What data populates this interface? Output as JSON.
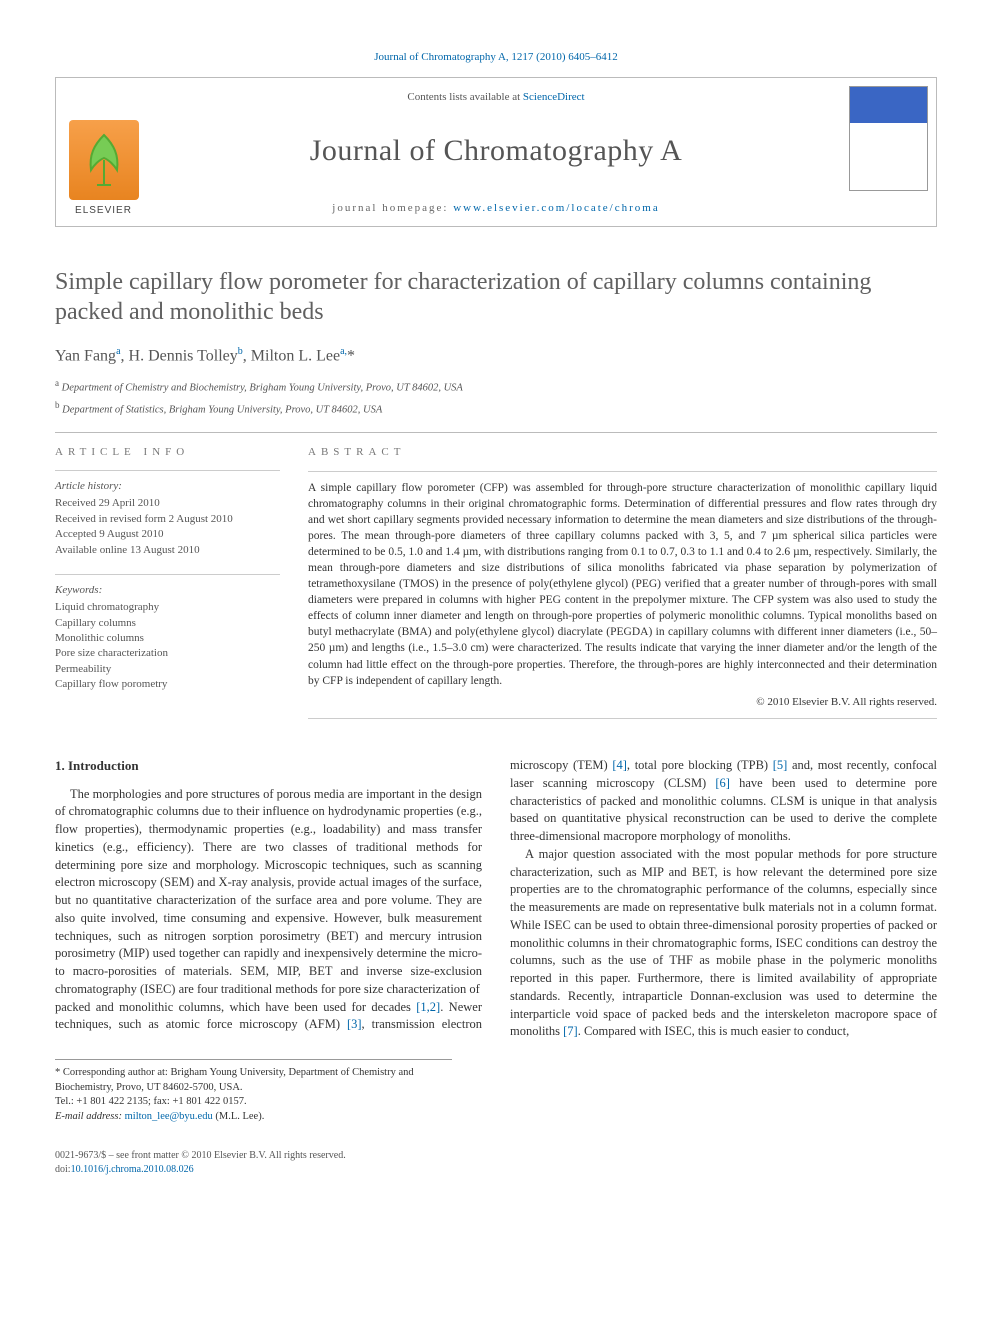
{
  "header": {
    "citation": "Journal of Chromatography A, 1217 (2010) 6405–6412",
    "contents_prefix": "Contents lists available at ",
    "contents_link": "ScienceDirect",
    "journal_name": "Journal of Chromatography A",
    "homepage_prefix": "journal homepage: ",
    "homepage_url": "www.elsevier.com/locate/chroma",
    "publisher": "ELSEVIER"
  },
  "article": {
    "title": "Simple capillary flow porometer for characterization of capillary columns containing packed and monolithic beds",
    "authors_html": "Yan Fang<sup>a</sup>, H. Dennis Tolley<sup>b</sup>, Milton L. Lee<sup>a,</sup><span class='star'>*</span>",
    "affiliations": [
      {
        "marker": "a",
        "text": "Department of Chemistry and Biochemistry, Brigham Young University, Provo, UT 84602, USA"
      },
      {
        "marker": "b",
        "text": "Department of Statistics, Brigham Young University, Provo, UT 84602, USA"
      }
    ]
  },
  "info": {
    "heading": "ARTICLE INFO",
    "history_head": "Article history:",
    "history": [
      "Received 29 April 2010",
      "Received in revised form 2 August 2010",
      "Accepted 9 August 2010",
      "Available online 13 August 2010"
    ],
    "keywords_head": "Keywords:",
    "keywords": [
      "Liquid chromatography",
      "Capillary columns",
      "Monolithic columns",
      "Pore size characterization",
      "Permeability",
      "Capillary flow porometry"
    ]
  },
  "abstract": {
    "heading": "ABSTRACT",
    "text": "A simple capillary flow porometer (CFP) was assembled for through-pore structure characterization of monolithic capillary liquid chromatography columns in their original chromatographic forms. Determination of differential pressures and flow rates through dry and wet short capillary segments provided necessary information to determine the mean diameters and size distributions of the through-pores. The mean through-pore diameters of three capillary columns packed with 3, 5, and 7 µm spherical silica particles were determined to be 0.5, 1.0 and 1.4 µm, with distributions ranging from 0.1 to 0.7, 0.3 to 1.1 and 0.4 to 2.6 µm, respectively. Similarly, the mean through-pore diameters and size distributions of silica monoliths fabricated via phase separation by polymerization of tetramethoxysilane (TMOS) in the presence of poly(ethylene glycol) (PEG) verified that a greater number of through-pores with small diameters were prepared in columns with higher PEG content in the prepolymer mixture. The CFP system was also used to study the effects of column inner diameter and length on through-pore properties of polymeric monolithic columns. Typical monoliths based on butyl methacrylate (BMA) and poly(ethylene glycol) diacrylate (PEGDA) in capillary columns with different inner diameters (i.e., 50–250 µm) and lengths (i.e., 1.5–3.0 cm) were characterized. The results indicate that varying the inner diameter and/or the length of the column had little effect on the through-pore properties. Therefore, the through-pores are highly interconnected and their determination by CFP is independent of capillary length.",
    "copyright": "© 2010 Elsevier B.V. All rights reserved."
  },
  "body": {
    "section_number": "1.",
    "section_title": "Introduction",
    "p1": "The morphologies and pore structures of porous media are important in the design of chromatographic columns due to their influence on hydrodynamic properties (e.g., flow properties), thermodynamic properties (e.g., loadability) and mass transfer kinetics (e.g., efficiency). There are two classes of traditional methods for determining pore size and morphology. Microscopic techniques, such as scanning electron microscopy (SEM) and X-ray analysis, provide actual images of the surface, but no quantitative characterization of the surface area and pore volume. They are also quite involved, time consuming and expensive. However, bulk measurement techniques, such as nitrogen sorption porosimetry (BET) and mercury intrusion porosimetry (MIP) used together can rapidly and inexpensively determine the micro- to macro-porosities of materials. SEM, MIP, BET and inverse size-exclusion chromatography (ISEC) are four traditional methods for pore size characterization of",
    "p2a": "packed and monolithic columns, which have been used for decades ",
    "p2b": ". Newer techniques, such as atomic force microscopy (AFM) ",
    "p2c": ", transmission electron microscopy (TEM) ",
    "p2d": ", total pore blocking (TPB) ",
    "p2e": " and, most recently, confocal laser scanning microscopy (CLSM) ",
    "p2f": " have been used to determine pore characteristics of packed and monolithic columns. CLSM is unique in that analysis based on quantitative physical reconstruction can be used to derive the complete three-dimensional macropore morphology of monoliths.",
    "p3a": "A major question associated with the most popular methods for pore structure characterization, such as MIP and BET, is how relevant the determined pore size properties are to the chromatographic performance of the columns, especially since the measurements are made on representative bulk materials not in a column format. While ISEC can be used to obtain three-dimensional porosity properties of packed or monolithic columns in their chromatographic forms, ISEC conditions can destroy the columns, such as the use of THF as mobile phase in the polymeric monoliths reported in this paper. Furthermore, there is limited availability of appropriate standards. Recently, intraparticle Donnan-exclusion was used to determine the interparticle void space of packed beds and the interskeleton macropore space of monoliths ",
    "p3b": ". Compared with ISEC, this is much easier to conduct,",
    "refs": {
      "r12": "[1,2]",
      "r3": "[3]",
      "r4": "[4]",
      "r5": "[5]",
      "r6": "[6]",
      "r7": "[7]"
    }
  },
  "footnote": {
    "corr": "* Corresponding author at: Brigham Young University, Department of Chemistry and Biochemistry, Provo, UT 84602-5700, USA.",
    "tel": "Tel.: +1 801 422 2135; fax: +1 801 422 0157.",
    "email_label": "E-mail address: ",
    "email": "milton_lee@byu.edu",
    "email_suffix": " (M.L. Lee)."
  },
  "footer": {
    "line1": "0021-9673/$ – see front matter © 2010 Elsevier B.V. All rights reserved.",
    "doi_label": "doi:",
    "doi": "10.1016/j.chroma.2010.08.026"
  },
  "colors": {
    "link": "#0066aa",
    "heading_gray": "#606060",
    "rule": "#bbbbbb"
  }
}
